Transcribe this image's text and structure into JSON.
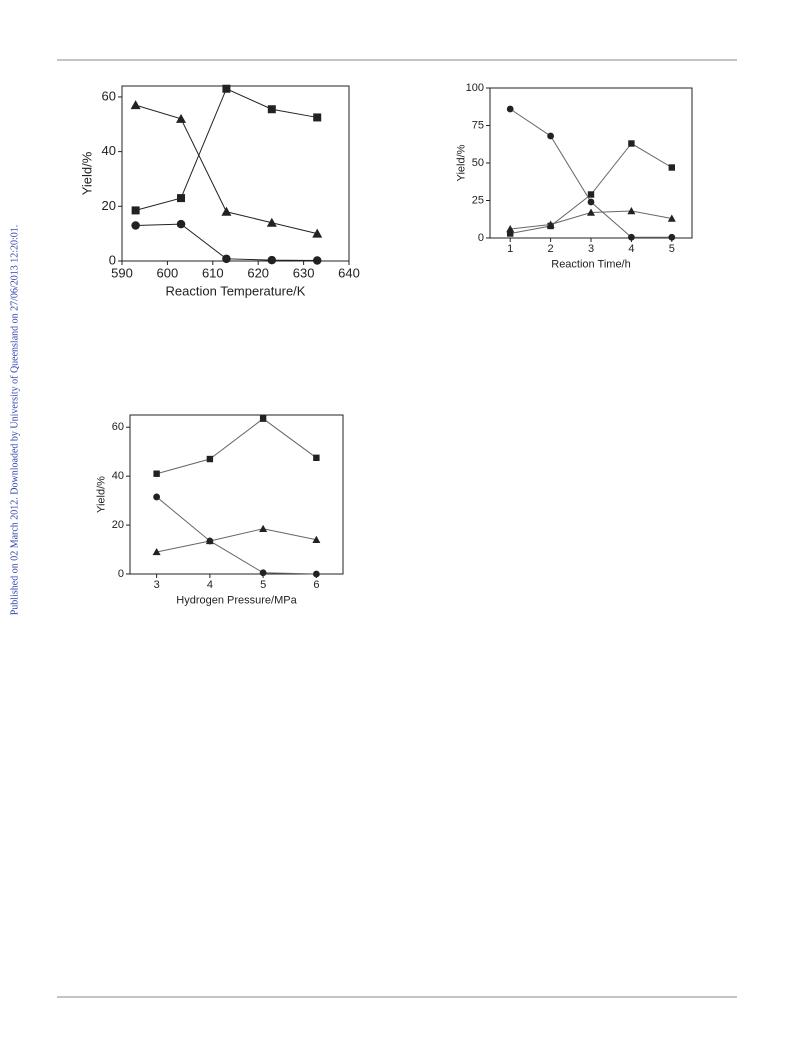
{
  "sidebar": "Published on 02 March 2012. Downloaded by University of Queensland on 27/06/2013 12:20:01.",
  "chart_data": [
    {
      "type": "line",
      "xlabel": "Reaction Temperature/K",
      "ylabel": "Yield/%",
      "x": [
        593,
        603,
        613,
        623,
        633
      ],
      "xlim": [
        590,
        640
      ],
      "xticks": [
        590,
        600,
        610,
        620,
        630,
        640
      ],
      "ylim": [
        0,
        64
      ],
      "yticks": [
        0,
        20,
        40,
        60
      ],
      "series": [
        {
          "marker": "square",
          "color": "#222222",
          "values": [
            18.5,
            23,
            63,
            55.5,
            52.5
          ]
        },
        {
          "marker": "triangle",
          "color": "#222222",
          "values": [
            57,
            52,
            18,
            14,
            10
          ]
        },
        {
          "marker": "circle",
          "color": "#222222",
          "values": [
            13,
            13.5,
            0.8,
            0.3,
            0.2
          ]
        }
      ]
    },
    {
      "type": "line",
      "xlabel": "Reaction Time/h",
      "ylabel": "Yield/%",
      "x": [
        1,
        2,
        3,
        4,
        5
      ],
      "xlim": [
        0.5,
        5.5
      ],
      "xticks": [
        1,
        2,
        3,
        4,
        5
      ],
      "ylim": [
        0,
        100
      ],
      "yticks": [
        0,
        25,
        50,
        75,
        100
      ],
      "series": [
        {
          "marker": "square",
          "color": "#222222",
          "values": [
            3,
            8,
            29,
            63,
            47
          ]
        },
        {
          "marker": "triangle",
          "color": "#222222",
          "values": [
            6,
            9,
            17,
            18,
            13
          ]
        },
        {
          "marker": "circle",
          "color": "#222222",
          "values": [
            86,
            68,
            24,
            0.5,
            0.5
          ]
        }
      ]
    },
    {
      "type": "line",
      "xlabel": "Hydrogen Pressure/MPa",
      "ylabel": "Yield/%",
      "x": [
        3,
        4,
        5,
        6
      ],
      "xlim": [
        2.5,
        6.5
      ],
      "xticks": [
        3,
        4,
        5,
        6
      ],
      "ylim": [
        0,
        65
      ],
      "yticks": [
        0,
        20,
        40,
        60
      ],
      "series": [
        {
          "marker": "square",
          "color": "#222222",
          "values": [
            41,
            47,
            63.5,
            47.5
          ]
        },
        {
          "marker": "triangle",
          "color": "#222222",
          "values": [
            9,
            13.5,
            18.5,
            14
          ]
        },
        {
          "marker": "circle",
          "color": "#222222",
          "values": [
            31.5,
            13.5,
            0.5,
            0
          ]
        }
      ]
    }
  ]
}
